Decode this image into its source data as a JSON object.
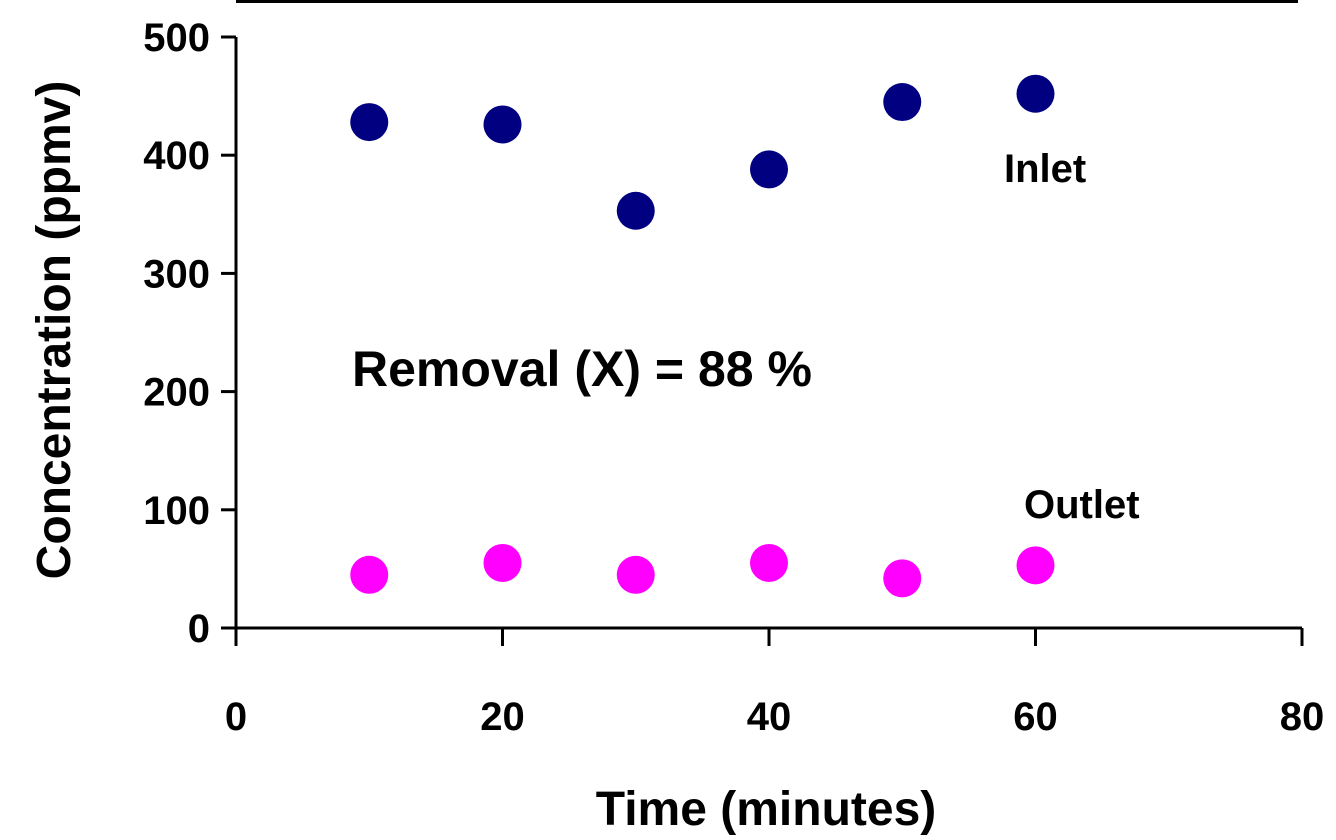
{
  "chart_data": {
    "type": "scatter",
    "xlabel": "Time (minutes)",
    "ylabel": "Concentration (ppmv)",
    "xlim": [
      0,
      80
    ],
    "ylim": [
      0,
      500
    ],
    "x_ticks": [
      "0",
      "20",
      "40",
      "60",
      "80"
    ],
    "y_ticks": [
      "0",
      "100",
      "200",
      "300",
      "400",
      "500"
    ],
    "grid": false,
    "series": [
      {
        "name": "Inlet",
        "color": "#000080",
        "x": [
          10,
          20,
          30,
          40,
          50,
          60
        ],
        "y": [
          428,
          426,
          353,
          388,
          445,
          452
        ]
      },
      {
        "name": "Outlet",
        "color": "#FF00FF",
        "x": [
          10,
          20,
          30,
          40,
          50,
          60
        ],
        "y": [
          45,
          55,
          45,
          55,
          42,
          53
        ]
      }
    ],
    "annotation": "Removal (X) = 88 %"
  }
}
